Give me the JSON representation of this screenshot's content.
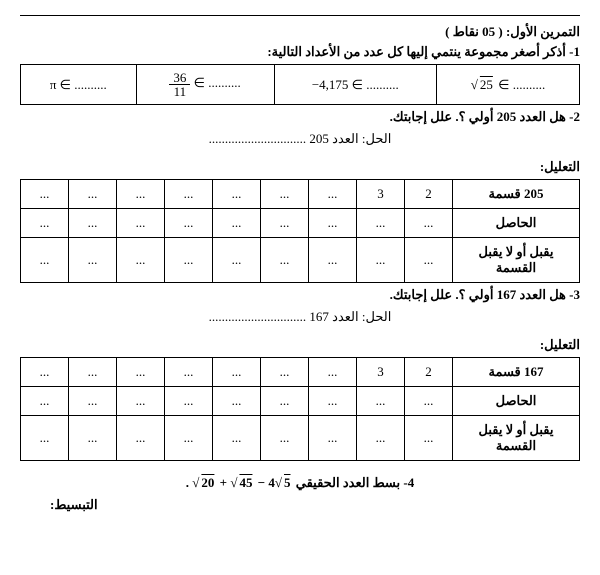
{
  "header": {
    "title": "التمرين الأول: ( 05 نقاط )"
  },
  "q1": {
    "prompt": "1- أذكر أصغر مجموعة ينتمي إليها كل عدد من الأعداد التالية:",
    "cells": {
      "c1_pre": "√",
      "c1_val": "25",
      "c1_sym": " ∈ ..........",
      "c2": "−4,175 ∈ ..........",
      "c3_num": "36",
      "c3_den": "11",
      "c3_sym": " ∈ ..........",
      "c4": "π ∈ .........."
    }
  },
  "q2": {
    "prompt": "2- هل العدد 205 أولي ؟. علل إجابتك.",
    "answer": "الحل: العدد 205 ..............................",
    "label": "التعليل:",
    "row1_head": "205 قسمة",
    "row2_head": "الحاصل",
    "row3_head": "يقبل أو لا يقبل القسمة",
    "v2": "2",
    "v3": "3",
    "dots": "..."
  },
  "q3": {
    "prompt": "3- هل العدد 167 أولي ؟. علل إجابتك.",
    "answer": "الحل: العدد 167 ..............................",
    "label": "التعليل:",
    "row1_head": "167 قسمة",
    "row2_head": "الحاصل",
    "row3_head": "يقبل أو لا يقبل القسمة",
    "v2": "2",
    "v3": "3",
    "dots": "..."
  },
  "q4": {
    "prefix": "4- بسط العدد الحقيقي ",
    "expr_p1": "20",
    "expr_plus": " + √",
    "expr_p2": "45",
    "expr_minus": " − 4√",
    "expr_p3": "5",
    "expr_dot": " .",
    "simplify": "التبسيط:"
  }
}
